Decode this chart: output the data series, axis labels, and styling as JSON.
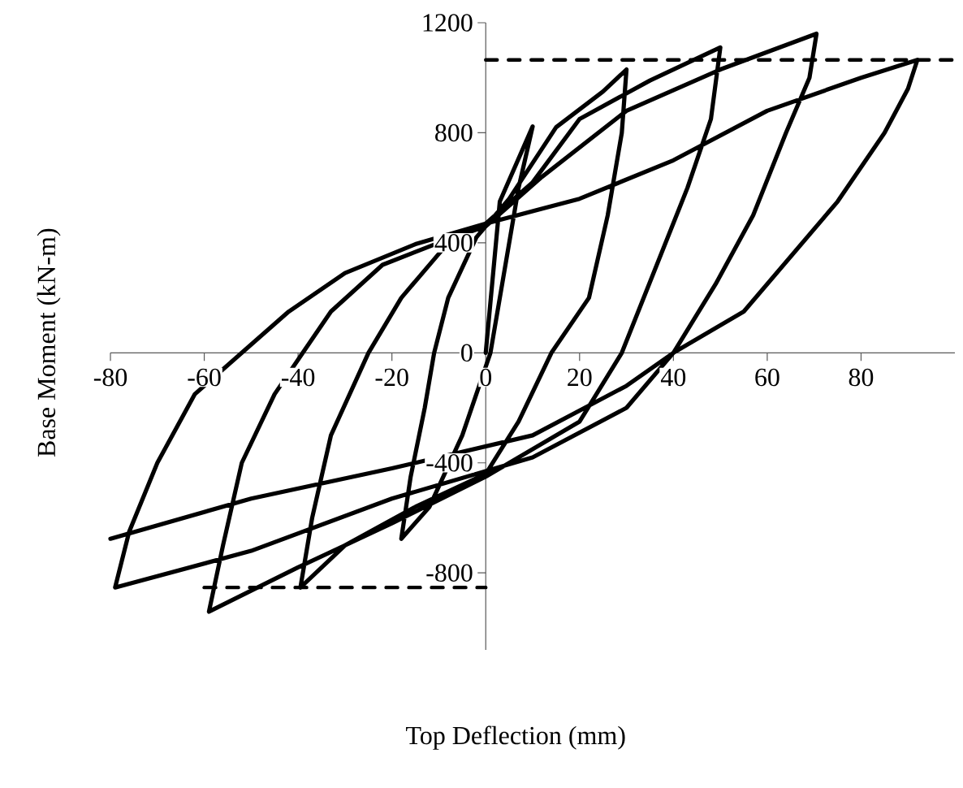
{
  "chart_data": {
    "type": "line",
    "xlabel": "Top Deflection (mm)",
    "ylabel": "Base Moment (kN-m)",
    "xlim": [
      -80,
      100
    ],
    "ylim": [
      -1080,
      1200
    ],
    "xticks": [
      -80,
      -60,
      -40,
      -20,
      0,
      20,
      40,
      60,
      80
    ],
    "yticks": [
      -800,
      -400,
      0,
      400,
      800,
      1200
    ],
    "marker": "none",
    "grid": false,
    "series": [
      {
        "color": "#000000",
        "line_style": "solid",
        "x": [
          0,
          3,
          10,
          7,
          1,
          -5,
          -12,
          -18,
          -16,
          -13,
          -11,
          -8,
          -2,
          5,
          15,
          25,
          30,
          29,
          26,
          22,
          14,
          7,
          0,
          -15,
          -30,
          -39.5,
          -37,
          -33,
          -25,
          -18,
          -8,
          0,
          10,
          20,
          35,
          50,
          48,
          43,
          36,
          29,
          20,
          0,
          -20,
          -40,
          -59,
          -56,
          -52,
          -45,
          -39,
          -33,
          -22,
          -10,
          0,
          12,
          30,
          50,
          70.5,
          69,
          64,
          57,
          49,
          40,
          30,
          10,
          -20,
          -50,
          -79,
          -76,
          -70,
          -62,
          -52,
          -42,
          -30,
          -15,
          0,
          20,
          40,
          60,
          80,
          92,
          90,
          85,
          75,
          65,
          55,
          40,
          30,
          10,
          -20,
          -50,
          -80
        ],
        "values": [
          0,
          550,
          823,
          600,
          0,
          -300,
          -560,
          -676,
          -450,
          -200,
          0,
          200,
          420,
          560,
          820,
          950,
          1030,
          800,
          500,
          200,
          0,
          -250,
          -440,
          -560,
          -700,
          -853,
          -600,
          -300,
          0,
          200,
          400,
          470,
          620,
          850,
          990,
          1110,
          850,
          600,
          300,
          0,
          -250,
          -450,
          -620,
          -780,
          -941,
          -700,
          -400,
          -150,
          0,
          150,
          320,
          400,
          460,
          640,
          880,
          1030,
          1160,
          1000,
          800,
          500,
          250,
          0,
          -200,
          -380,
          -530,
          -720,
          -853,
          -650,
          -400,
          -150,
          0,
          150,
          290,
          395,
          470,
          560,
          700,
          880,
          1000,
          1065,
          960,
          800,
          550,
          350,
          150,
          0,
          -120,
          -300,
          -420,
          -530,
          -676
        ]
      },
      {
        "color": "#000000",
        "line_style": "dashed",
        "x": [
          0,
          100
        ],
        "values": [
          1065,
          1065
        ]
      },
      {
        "color": "#000000",
        "line_style": "dashed",
        "x": [
          -60,
          0
        ],
        "values": [
          -853,
          -853
        ]
      }
    ]
  }
}
